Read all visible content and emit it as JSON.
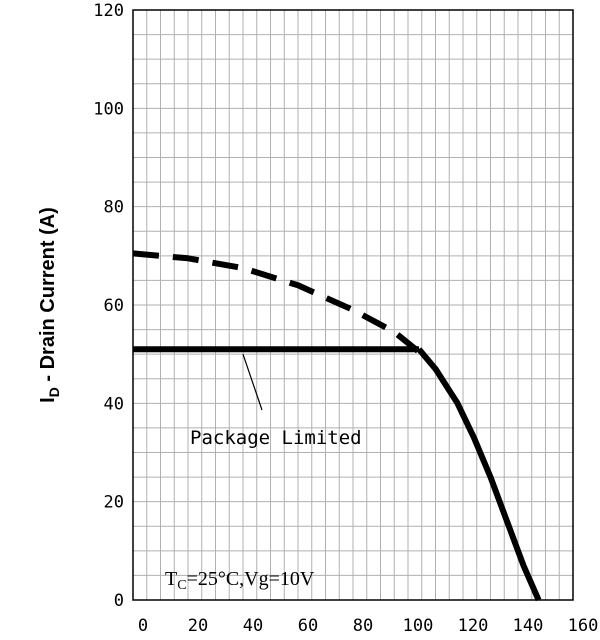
{
  "chart_data": {
    "type": "line",
    "title": "",
    "xlabel": "",
    "ylabel": "I_D - Drain Current (A)",
    "ylabel_parts": {
      "main": "I",
      "sub": "D",
      "rest": " - Drain Current (A)"
    },
    "xlim": [
      0,
      160
    ],
    "ylim": [
      0,
      120
    ],
    "x_ticks": [
      0,
      20,
      40,
      60,
      80,
      100,
      120,
      140,
      160
    ],
    "y_ticks": [
      0,
      20,
      40,
      60,
      80,
      100,
      120
    ],
    "grid": true,
    "series": [
      {
        "style": "dashed",
        "x": [
          0,
          20,
          40,
          60,
          80,
          95,
          105
        ],
        "y": [
          70.5,
          69.5,
          67.5,
          64,
          59,
          54.5,
          50
        ]
      },
      {
        "style": "solid",
        "x": [
          0,
          104
        ],
        "y": [
          51,
          51
        ]
      },
      {
        "style": "solid",
        "x": [
          104,
          110,
          118,
          124,
          130,
          136,
          142,
          147.5
        ],
        "y": [
          51,
          47,
          40,
          33,
          25,
          16,
          7,
          0
        ]
      }
    ],
    "annotations": [
      {
        "text": "Package Limited",
        "arrow_to": [
          40,
          50
        ]
      },
      {
        "text_parts": {
          "t": "T",
          "sub": "C",
          "rest": "=25°C,Vg=10V"
        }
      }
    ]
  }
}
